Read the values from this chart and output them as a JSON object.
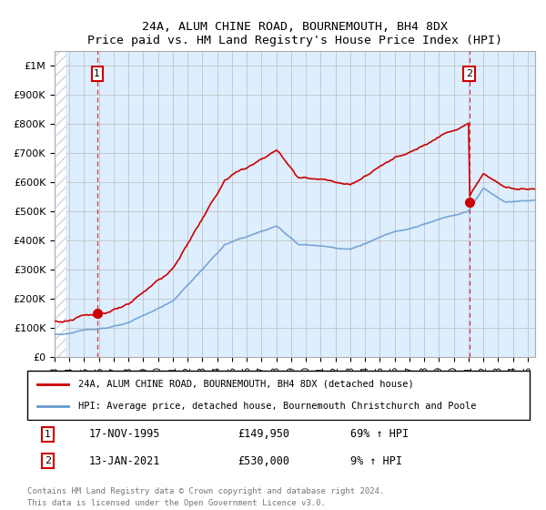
{
  "title": "24A, ALUM CHINE ROAD, BOURNEMOUTH, BH4 8DX",
  "subtitle": "Price paid vs. HM Land Registry's House Price Index (HPI)",
  "legend_line1": "24A, ALUM CHINE ROAD, BOURNEMOUTH, BH4 8DX (detached house)",
  "legend_line2": "HPI: Average price, detached house, Bournemouth Christchurch and Poole",
  "footer": "Contains HM Land Registry data © Crown copyright and database right 2024.\nThis data is licensed under the Open Government Licence v3.0.",
  "annotation1_label": "1",
  "annotation1_date": "17-NOV-1995",
  "annotation1_price": "£149,950",
  "annotation1_hpi": "69% ↑ HPI",
  "annotation2_label": "2",
  "annotation2_date": "13-JAN-2021",
  "annotation2_price": "£530,000",
  "annotation2_hpi": "9% ↑ HPI",
  "sale1_x": 1995.88,
  "sale1_y": 149950,
  "sale2_x": 2021.04,
  "sale2_y": 530000,
  "xmin": 1993.0,
  "xmax": 2025.5,
  "ymin": 0,
  "ymax": 1050000,
  "red_color": "#cc0000",
  "blue_color": "#6699cc",
  "bg_color": "#ddeeff",
  "hatch_color": "#c8d8e8",
  "grid_color": "#bbbbbb",
  "yticks": [
    0,
    100000,
    200000,
    300000,
    400000,
    500000,
    600000,
    700000,
    800000,
    900000,
    1000000
  ],
  "ytick_labels": [
    "£0",
    "£100K",
    "£200K",
    "£300K",
    "£400K",
    "£500K",
    "£600K",
    "£700K",
    "£800K",
    "£900K",
    "£1M"
  ],
  "xticks": [
    1993,
    1994,
    1995,
    1996,
    1997,
    1998,
    1999,
    2000,
    2001,
    2002,
    2003,
    2004,
    2005,
    2006,
    2007,
    2008,
    2009,
    2010,
    2011,
    2012,
    2013,
    2014,
    2015,
    2016,
    2017,
    2018,
    2019,
    2020,
    2021,
    2022,
    2023,
    2024,
    2025
  ]
}
